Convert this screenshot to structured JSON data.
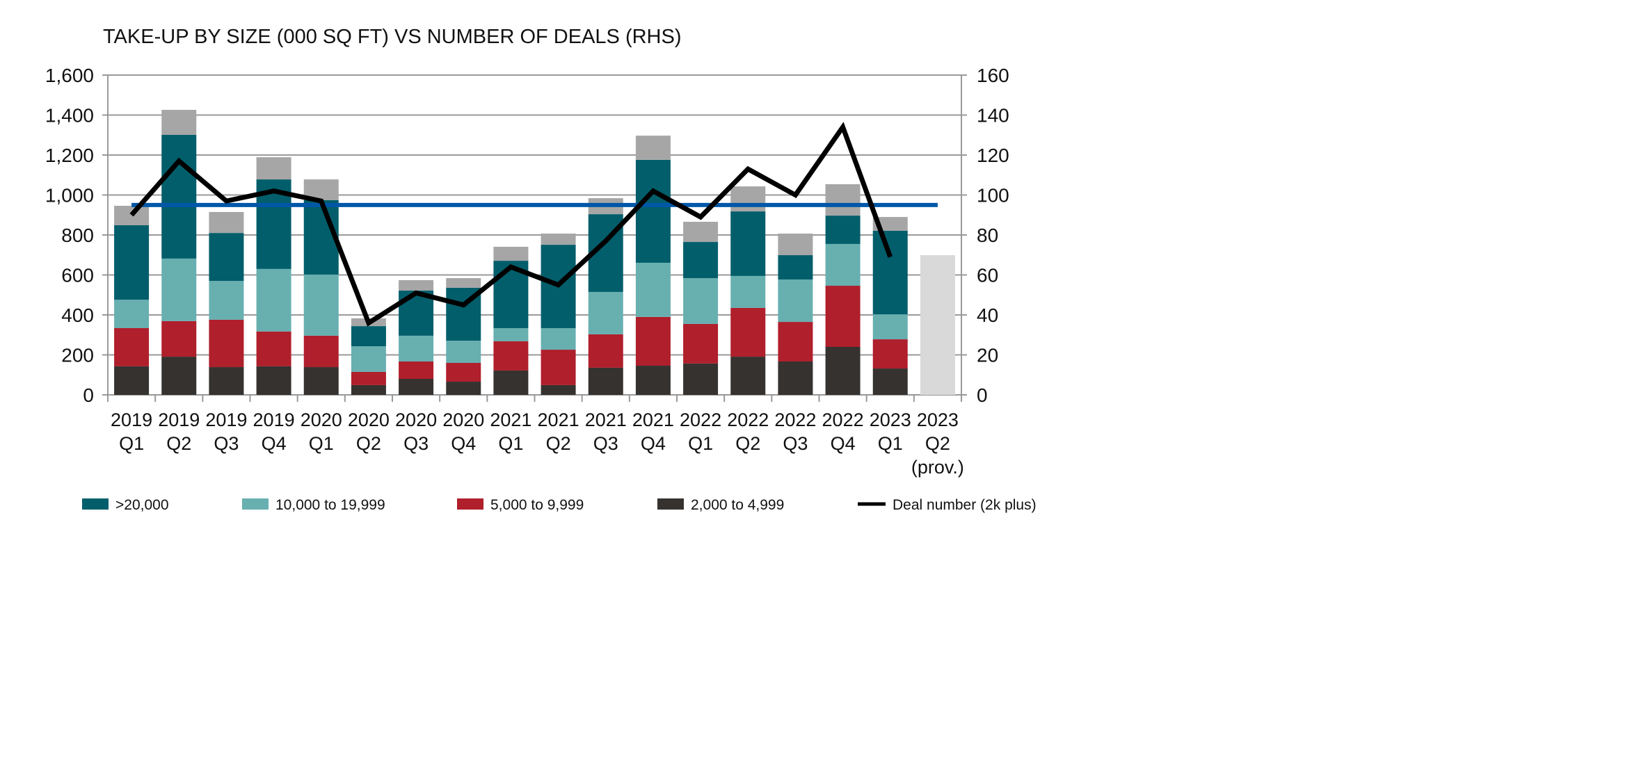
{
  "chart_data": {
    "type": "bar",
    "stacked": true,
    "title": "TAKE-UP BY SIZE (000 SQ FT) VS NUMBER OF DEALS (RHS)",
    "categories": [
      [
        "2019",
        "Q1"
      ],
      [
        "2019",
        "Q2"
      ],
      [
        "2019",
        "Q3"
      ],
      [
        "2019",
        "Q4"
      ],
      [
        "2020",
        "Q1"
      ],
      [
        "2020",
        "Q2"
      ],
      [
        "2020",
        "Q3"
      ],
      [
        "2020",
        "Q4"
      ],
      [
        "2021",
        "Q1"
      ],
      [
        "2021",
        "Q2"
      ],
      [
        "2021",
        "Q3"
      ],
      [
        "2021",
        "Q4"
      ],
      [
        "2022",
        "Q1"
      ],
      [
        "2022",
        "Q2"
      ],
      [
        "2022",
        "Q3"
      ],
      [
        "2022",
        "Q4"
      ],
      [
        "2023",
        "Q1"
      ],
      [
        "2023",
        "Q2",
        "(prov.)"
      ]
    ],
    "ylim": [
      0,
      1600
    ],
    "y_ticks": [
      "0",
      "200",
      "400",
      "600",
      "800",
      "1,000",
      "1,200",
      "1,400",
      "1,600"
    ],
    "y2lim": [
      0,
      160
    ],
    "y2_ticks": [
      "0",
      "20",
      "40",
      "60",
      "80",
      "100",
      "120",
      "140",
      "160"
    ],
    "grid": true,
    "legend_position": "bottom",
    "series": [
      {
        "name": "2,000 to 4,999",
        "color": "#35322f",
        "values": [
          143,
          191,
          139,
          143,
          139,
          49,
          80,
          66,
          122,
          49,
          136,
          146,
          157,
          191,
          167,
          240,
          132,
          null
        ]
      },
      {
        "name": "5,000 to 9,999",
        "color": "#b01f2c",
        "values": [
          191,
          178,
          237,
          174,
          157,
          66,
          87,
          94,
          146,
          177,
          167,
          244,
          198,
          244,
          198,
          306,
          146,
          null
        ]
      },
      {
        "name": "10,000 to 19,999",
        "color": "#68afb0",
        "values": [
          142,
          313,
          194,
          313,
          306,
          128,
          129,
          111,
          66,
          108,
          212,
          271,
          229,
          160,
          212,
          209,
          125,
          null
        ]
      },
      {
        "name": ">20,000",
        "color": "#025e6b",
        "values": [
          373,
          619,
          240,
          448,
          372,
          101,
          226,
          265,
          337,
          417,
          389,
          515,
          181,
          323,
          122,
          142,
          418,
          null
        ]
      },
      {
        "color": "#a6a6a6",
        "values": [
          97,
          125,
          105,
          111,
          104,
          39,
          52,
          48,
          70,
          56,
          80,
          121,
          101,
          125,
          108,
          157,
          69,
          null
        ]
      },
      {
        "color": "#d9d9d9",
        "values": [
          null,
          null,
          null,
          null,
          null,
          null,
          null,
          null,
          null,
          null,
          null,
          null,
          null,
          null,
          null,
          null,
          null,
          699
        ]
      }
    ],
    "average_line": {
      "color": "#0057a8",
      "value": 950
    },
    "line_series": {
      "name": "Deal number (2k plus)",
      "axis": "right",
      "color": "#000000",
      "values": [
        90,
        117,
        97,
        102,
        97,
        36,
        51,
        45,
        64,
        55,
        77,
        102,
        89,
        113,
        100,
        134,
        69
      ]
    }
  }
}
